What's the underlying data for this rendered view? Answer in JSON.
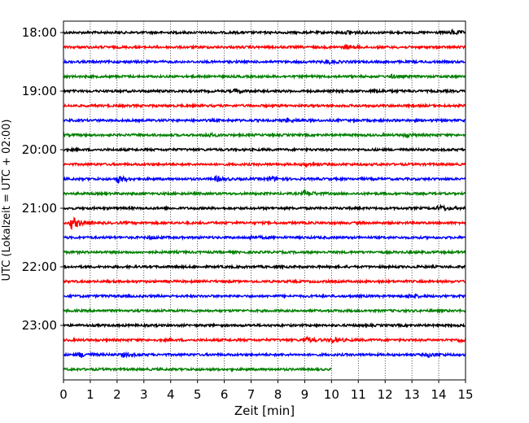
{
  "chart_data": {
    "type": "line",
    "title": "",
    "xlabel": "Zeit  [min]",
    "ylabel": "UTC (Lokalzeit = UTC + 02:00)",
    "xlim": [
      0,
      15
    ],
    "x_ticks": [
      "0",
      "1",
      "2",
      "3",
      "4",
      "5",
      "6",
      "7",
      "8",
      "9",
      "10",
      "11",
      "12",
      "13",
      "14",
      "15"
    ],
    "y_tick_labels": [
      "18:00",
      "19:00",
      "20:00",
      "21:00",
      "22:00",
      "23:00"
    ],
    "grid": "vertical dotted at each minute",
    "trace_colors": [
      "#000000",
      "#ff0000",
      "#0000ff",
      "#008000"
    ],
    "rows": [
      {
        "start": "18:00",
        "color": "#000000",
        "end_min": 15,
        "events": [
          {
            "t": 10.6,
            "a": 2.0
          },
          {
            "t": 14.5,
            "a": 2.5
          }
        ]
      },
      {
        "start": "18:15",
        "color": "#ff0000",
        "end_min": 15,
        "events": [
          {
            "t": 10.5,
            "a": 2.0
          }
        ]
      },
      {
        "start": "18:30",
        "color": "#0000ff",
        "end_min": 15,
        "events": [
          {
            "t": 9.8,
            "a": 2.0
          }
        ]
      },
      {
        "start": "18:45",
        "color": "#008000",
        "end_min": 15,
        "events": [
          {
            "t": 12.2,
            "a": 1.5
          }
        ]
      },
      {
        "start": "19:00",
        "color": "#000000",
        "end_min": 15,
        "events": [
          {
            "t": 6.4,
            "a": 1.5
          },
          {
            "t": 11.6,
            "a": 1.5
          }
        ]
      },
      {
        "start": "19:15",
        "color": "#ff0000",
        "end_min": 15,
        "events": []
      },
      {
        "start": "19:30",
        "color": "#0000ff",
        "end_min": 15,
        "events": [
          {
            "t": 8.3,
            "a": 1.8
          }
        ]
      },
      {
        "start": "19:45",
        "color": "#008000",
        "end_min": 15,
        "events": [
          {
            "t": 5.3,
            "a": 2.0
          },
          {
            "t": 12.7,
            "a": 2.0
          }
        ]
      },
      {
        "start": "20:00",
        "color": "#000000",
        "end_min": 15,
        "events": []
      },
      {
        "start": "20:15",
        "color": "#ff0000",
        "end_min": 15,
        "events": [
          {
            "t": 9.0,
            "a": 1.5
          }
        ]
      },
      {
        "start": "20:30",
        "color": "#0000ff",
        "end_min": 15,
        "events": [
          {
            "t": 2.0,
            "a": 4.0
          },
          {
            "t": 5.7,
            "a": 2.5
          },
          {
            "t": 7.7,
            "a": 2.5
          }
        ]
      },
      {
        "start": "20:45",
        "color": "#008000",
        "end_min": 15,
        "events": [
          {
            "t": 9.0,
            "a": 3.0
          }
        ]
      },
      {
        "start": "21:00",
        "color": "#000000",
        "end_min": 15,
        "events": [
          {
            "t": 14.0,
            "a": 3.0
          }
        ]
      },
      {
        "start": "21:15",
        "color": "#ff0000",
        "end_min": 15,
        "events": [
          {
            "t": 0.3,
            "a": 7.0
          }
        ]
      },
      {
        "start": "21:30",
        "color": "#0000ff",
        "end_min": 15,
        "events": [
          {
            "t": 3.2,
            "a": 1.5
          },
          {
            "t": 7.0,
            "a": 1.5
          }
        ]
      },
      {
        "start": "21:45",
        "color": "#008000",
        "end_min": 15,
        "events": []
      },
      {
        "start": "22:00",
        "color": "#000000",
        "end_min": 15,
        "events": []
      },
      {
        "start": "22:15",
        "color": "#ff0000",
        "end_min": 15,
        "events": []
      },
      {
        "start": "22:30",
        "color": "#0000ff",
        "end_min": 15,
        "events": [
          {
            "t": 12.9,
            "a": 2.0
          }
        ]
      },
      {
        "start": "22:45",
        "color": "#008000",
        "end_min": 15,
        "events": []
      },
      {
        "start": "23:00",
        "color": "#000000",
        "end_min": 15,
        "events": []
      },
      {
        "start": "23:15",
        "color": "#ff0000",
        "end_min": 15,
        "events": [
          {
            "t": 9.0,
            "a": 3.0
          },
          {
            "t": 10.0,
            "a": 3.0
          },
          {
            "t": 14.8,
            "a": 2.0
          }
        ]
      },
      {
        "start": "23:30",
        "color": "#0000ff",
        "end_min": 15,
        "events": [
          {
            "t": 0.6,
            "a": 2.5
          },
          {
            "t": 2.2,
            "a": 2.0
          },
          {
            "t": 13.6,
            "a": 2.0
          }
        ]
      },
      {
        "start": "23:45",
        "color": "#008000",
        "end_min": 10,
        "events": []
      }
    ]
  }
}
